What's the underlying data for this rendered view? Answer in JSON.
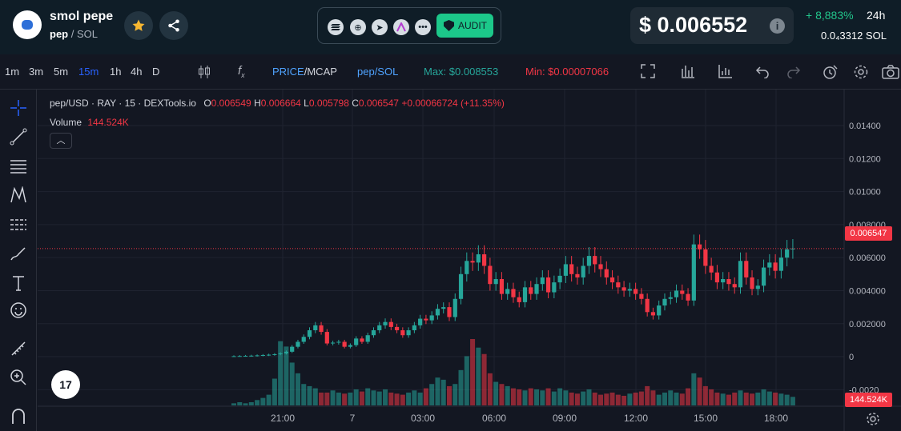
{
  "header": {
    "token_name": "smol pepe",
    "pair_base": "pep",
    "pair_sep": " / ",
    "pair_quote": "SOL",
    "audit_label": "AUDIT",
    "price": "$ 0.006552",
    "change_24h": "+ 8,883%",
    "period": "24h",
    "sol_price": "0.0₄3312  SOL",
    "social_icons": [
      "solana-icon",
      "globe-icon",
      "telegram-icon",
      "x-icon",
      "more-icon"
    ]
  },
  "toolbar": {
    "timeframes": [
      "1m",
      "3m",
      "5m",
      "15m",
      "1h",
      "4h",
      "D"
    ],
    "active_timeframe": "15m",
    "price_label": "PRICE",
    "mcap_label": "/MCAP",
    "pair_label": "pep/SOL",
    "max_label": "Max: $0.008553",
    "min_label": "Min: $0.00007066"
  },
  "legend": {
    "symbol": "pep/USD · RAY · 15 · DEXTools.io",
    "o_label": "O",
    "o": "0.006549",
    "h_label": "H",
    "h": "0.006664",
    "l_label": "L",
    "l": "0.005798",
    "c_label": "C",
    "c": "0.006547",
    "change": "+0.00066724 (+11.35%)",
    "volume_label": "Volume",
    "volume": "144.524K"
  },
  "price_tag": "0.006547",
  "volume_tag": "144.524K",
  "colors": {
    "up": "#26a69a",
    "down": "#f23645",
    "accent": "#2962ff",
    "green": "#22c58b"
  },
  "chart_data": {
    "type": "candlestick",
    "y_ticks": [
      "0.01400",
      "0.01200",
      "0.01000",
      "0.008000",
      "0.006000",
      "0.004000",
      "0.002000",
      "0",
      "-0.0020"
    ],
    "ylim": [
      -0.003,
      0.0155
    ],
    "x_ticks": [
      "21:00",
      "7",
      "03:00",
      "06:00",
      "09:00",
      "12:00",
      "15:00",
      "18:00"
    ],
    "last_price": 0.006547,
    "closes": [
      3e-05,
      4e-05,
      5e-05,
      6e-05,
      8e-05,
      0.0001,
      0.00012,
      0.00015,
      0.0002,
      0.0003,
      0.0006,
      0.0009,
      0.0012,
      0.0016,
      0.0019,
      0.0015,
      0.0008,
      0.00085,
      0.0009,
      0.0006,
      0.0007,
      0.0011,
      0.0009,
      0.0013,
      0.0016,
      0.0019,
      0.0021,
      0.0018,
      0.0016,
      0.0013,
      0.0016,
      0.0019,
      0.0023,
      0.0022,
      0.0025,
      0.0029,
      0.003,
      0.0024,
      0.0035,
      0.005,
      0.0058,
      0.0057,
      0.0062,
      0.0055,
      0.0044,
      0.0047,
      0.0038,
      0.0041,
      0.0036,
      0.0033,
      0.0042,
      0.0038,
      0.0044,
      0.0048,
      0.0039,
      0.0045,
      0.0049,
      0.0056,
      0.005,
      0.0048,
      0.0055,
      0.0061,
      0.0056,
      0.0053,
      0.0048,
      0.0045,
      0.0042,
      0.004,
      0.0041,
      0.0038,
      0.0035,
      0.0027,
      0.0025,
      0.0031,
      0.0035,
      0.0036,
      0.004,
      0.0038,
      0.0034,
      0.0068,
      0.0065,
      0.0055,
      0.0051,
      0.0045,
      0.0047,
      0.0044,
      0.0042,
      0.0058,
      0.0048,
      0.0041,
      0.0043,
      0.0054,
      0.0057,
      0.0052,
      0.006,
      0.0065,
      0.006547
    ],
    "volumes": [
      2,
      3,
      2,
      3,
      5,
      7,
      10,
      25,
      60,
      55,
      40,
      30,
      20,
      18,
      16,
      12,
      12,
      14,
      12,
      11,
      12,
      15,
      13,
      16,
      14,
      13,
      15,
      12,
      11,
      10,
      12,
      14,
      12,
      16,
      20,
      26,
      24,
      18,
      20,
      33,
      46,
      62,
      54,
      48,
      30,
      22,
      20,
      18,
      16,
      15,
      14,
      16,
      15,
      14,
      16,
      13,
      16,
      14,
      12,
      11,
      13,
      15,
      12,
      10,
      11,
      12,
      10,
      9,
      11,
      12,
      13,
      18,
      14,
      10,
      12,
      14,
      12,
      11,
      16,
      30,
      26,
      18,
      15,
      12,
      11,
      10,
      12,
      14,
      12,
      11,
      12,
      15,
      13,
      12,
      11,
      10,
      8
    ]
  }
}
